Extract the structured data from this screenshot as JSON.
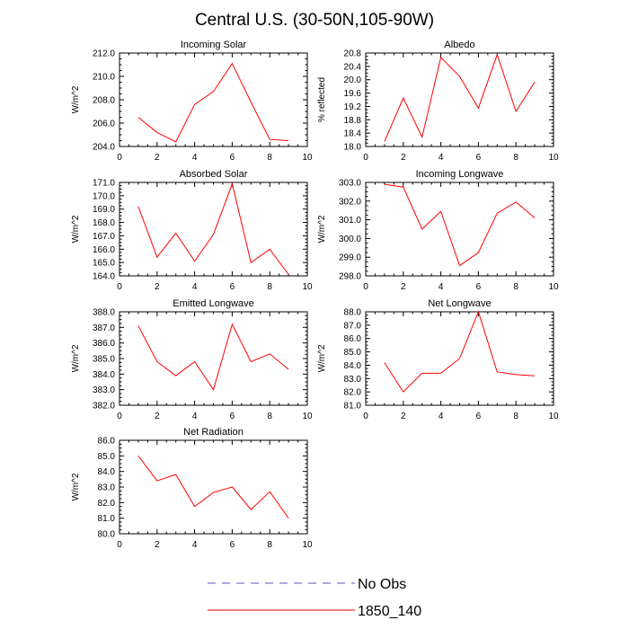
{
  "title": "Central U.S. (30-50N,105-90W)",
  "series_colors": {
    "model": "#ff0000",
    "obs": "#5555cc"
  },
  "legend": {
    "entries": [
      {
        "name": "No Obs",
        "style": "dashed",
        "color": "#5555cc"
      },
      {
        "name": "1850_140",
        "style": "solid",
        "color": "#ff0000"
      }
    ]
  },
  "chart_data": [
    {
      "type": "line",
      "title": "Incoming Solar",
      "ylabel": "W/m^2",
      "xlim": [
        0,
        10
      ],
      "xticks": [
        0,
        2,
        4,
        6,
        8,
        10
      ],
      "ylim": [
        204,
        212
      ],
      "yticks": [
        "204.0",
        "206.0",
        "208.0",
        "210.0",
        "212.0"
      ],
      "x": [
        1,
        2,
        3,
        4,
        5,
        6,
        7,
        8,
        9
      ],
      "series": [
        {
          "name": "1850_140",
          "values": [
            206.5,
            205.2,
            204.4,
            207.6,
            208.7,
            211.1,
            207.8,
            204.6,
            204.5
          ]
        }
      ]
    },
    {
      "type": "line",
      "title": "Albedo",
      "ylabel": "% reflected",
      "xlim": [
        0,
        10
      ],
      "xticks": [
        0,
        2,
        4,
        6,
        8,
        10
      ],
      "ylim": [
        18,
        20.8
      ],
      "yticks": [
        "18.0",
        "18.4",
        "18.8",
        "19.2",
        "19.6",
        "20.0",
        "20.4",
        "20.8"
      ],
      "x": [
        1,
        2,
        3,
        4,
        5,
        6,
        7,
        8,
        9
      ],
      "series": [
        {
          "name": "1850_140",
          "values": [
            18.15,
            19.45,
            18.28,
            20.67,
            20.1,
            19.15,
            20.75,
            19.05,
            19.93
          ]
        }
      ]
    },
    {
      "type": "line",
      "title": "Absorbed Solar",
      "ylabel": "W/m^2",
      "xlim": [
        0,
        10
      ],
      "xticks": [
        0,
        2,
        4,
        6,
        8,
        10
      ],
      "ylim": [
        164,
        171
      ],
      "yticks": [
        "164.0",
        "165.0",
        "166.0",
        "167.0",
        "168.0",
        "169.0",
        "170.0",
        "171.0"
      ],
      "x": [
        1,
        2,
        3,
        4,
        5,
        6,
        7,
        8,
        9
      ],
      "series": [
        {
          "name": "1850_140",
          "values": [
            169.2,
            165.4,
            167.2,
            165.1,
            167.1,
            170.9,
            165.0,
            166.0,
            164.1
          ]
        }
      ]
    },
    {
      "type": "line",
      "title": "Incoming Longwave",
      "ylabel": "W/m^2",
      "xlim": [
        0,
        10
      ],
      "xticks": [
        0,
        2,
        4,
        6,
        8,
        10
      ],
      "ylim": [
        298,
        303
      ],
      "yticks": [
        "298.0",
        "299.0",
        "300.0",
        "301.0",
        "302.0",
        "303.0"
      ],
      "x": [
        1,
        2,
        3,
        4,
        5,
        6,
        7,
        8,
        9
      ],
      "series": [
        {
          "name": "1850_140",
          "values": [
            302.9,
            302.75,
            300.5,
            301.45,
            298.55,
            299.25,
            301.35,
            301.95,
            301.1
          ]
        }
      ]
    },
    {
      "type": "line",
      "title": "Emitted Longwave",
      "ylabel": "W/m^2",
      "xlim": [
        0,
        10
      ],
      "xticks": [
        0,
        2,
        4,
        6,
        8,
        10
      ],
      "ylim": [
        382,
        388
      ],
      "yticks": [
        "382.0",
        "383.0",
        "384.0",
        "385.0",
        "386.0",
        "387.0",
        "388.0"
      ],
      "x": [
        1,
        2,
        3,
        4,
        5,
        6,
        7,
        8,
        9
      ],
      "series": [
        {
          "name": "1850_140",
          "values": [
            387.1,
            384.8,
            383.9,
            384.8,
            383.0,
            387.2,
            384.8,
            385.3,
            384.3
          ]
        }
      ]
    },
    {
      "type": "line",
      "title": "Net Longwave",
      "ylabel": "W/m^2",
      "xlim": [
        0,
        10
      ],
      "xticks": [
        0,
        2,
        4,
        6,
        8,
        10
      ],
      "ylim": [
        81,
        88
      ],
      "yticks": [
        "81.0",
        "82.0",
        "83.0",
        "84.0",
        "85.0",
        "86.0",
        "87.0",
        "88.0"
      ],
      "x": [
        1,
        2,
        3,
        4,
        5,
        6,
        7,
        8,
        9
      ],
      "series": [
        {
          "name": "1850_140",
          "values": [
            84.2,
            82.0,
            83.4,
            83.4,
            84.5,
            88.0,
            83.5,
            83.3,
            83.2
          ]
        }
      ]
    },
    {
      "type": "line",
      "title": "Net Radiation",
      "ylabel": "W/m^2",
      "xlim": [
        0,
        10
      ],
      "xticks": [
        0,
        2,
        4,
        6,
        8,
        10
      ],
      "ylim": [
        80,
        86
      ],
      "yticks": [
        "80.0",
        "81.0",
        "82.0",
        "83.0",
        "84.0",
        "85.0",
        "86.0"
      ],
      "x": [
        1,
        2,
        3,
        4,
        5,
        6,
        7,
        8,
        9
      ],
      "series": [
        {
          "name": "1850_140",
          "values": [
            85.0,
            83.4,
            83.8,
            81.75,
            82.65,
            83.0,
            81.55,
            82.7,
            81.0
          ]
        }
      ]
    }
  ]
}
